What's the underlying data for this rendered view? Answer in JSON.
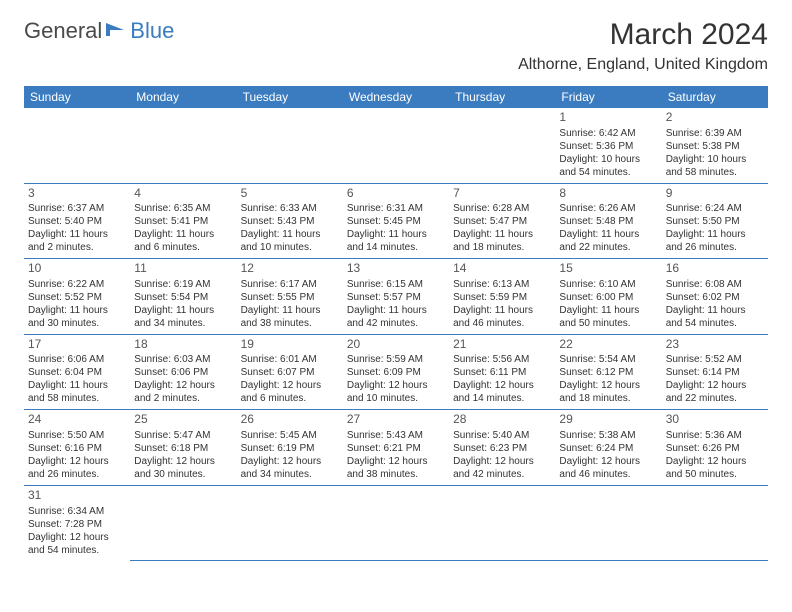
{
  "brand": {
    "part1": "General",
    "part2": "Blue"
  },
  "title": "March 2024",
  "location": "Althorne, England, United Kingdom",
  "colors": {
    "header_bg": "#3b7bbf",
    "header_text": "#ffffff",
    "row_divider": "#3b7bbf",
    "text": "#333333"
  },
  "weekdays": [
    "Sunday",
    "Monday",
    "Tuesday",
    "Wednesday",
    "Thursday",
    "Friday",
    "Saturday"
  ],
  "weeks": [
    [
      null,
      null,
      null,
      null,
      null,
      {
        "n": "1",
        "sr": "Sunrise: 6:42 AM",
        "ss": "Sunset: 5:36 PM",
        "dl": "Daylight: 10 hours and 54 minutes."
      },
      {
        "n": "2",
        "sr": "Sunrise: 6:39 AM",
        "ss": "Sunset: 5:38 PM",
        "dl": "Daylight: 10 hours and 58 minutes."
      }
    ],
    [
      {
        "n": "3",
        "sr": "Sunrise: 6:37 AM",
        "ss": "Sunset: 5:40 PM",
        "dl": "Daylight: 11 hours and 2 minutes."
      },
      {
        "n": "4",
        "sr": "Sunrise: 6:35 AM",
        "ss": "Sunset: 5:41 PM",
        "dl": "Daylight: 11 hours and 6 minutes."
      },
      {
        "n": "5",
        "sr": "Sunrise: 6:33 AM",
        "ss": "Sunset: 5:43 PM",
        "dl": "Daylight: 11 hours and 10 minutes."
      },
      {
        "n": "6",
        "sr": "Sunrise: 6:31 AM",
        "ss": "Sunset: 5:45 PM",
        "dl": "Daylight: 11 hours and 14 minutes."
      },
      {
        "n": "7",
        "sr": "Sunrise: 6:28 AM",
        "ss": "Sunset: 5:47 PM",
        "dl": "Daylight: 11 hours and 18 minutes."
      },
      {
        "n": "8",
        "sr": "Sunrise: 6:26 AM",
        "ss": "Sunset: 5:48 PM",
        "dl": "Daylight: 11 hours and 22 minutes."
      },
      {
        "n": "9",
        "sr": "Sunrise: 6:24 AM",
        "ss": "Sunset: 5:50 PM",
        "dl": "Daylight: 11 hours and 26 minutes."
      }
    ],
    [
      {
        "n": "10",
        "sr": "Sunrise: 6:22 AM",
        "ss": "Sunset: 5:52 PM",
        "dl": "Daylight: 11 hours and 30 minutes."
      },
      {
        "n": "11",
        "sr": "Sunrise: 6:19 AM",
        "ss": "Sunset: 5:54 PM",
        "dl": "Daylight: 11 hours and 34 minutes."
      },
      {
        "n": "12",
        "sr": "Sunrise: 6:17 AM",
        "ss": "Sunset: 5:55 PM",
        "dl": "Daylight: 11 hours and 38 minutes."
      },
      {
        "n": "13",
        "sr": "Sunrise: 6:15 AM",
        "ss": "Sunset: 5:57 PM",
        "dl": "Daylight: 11 hours and 42 minutes."
      },
      {
        "n": "14",
        "sr": "Sunrise: 6:13 AM",
        "ss": "Sunset: 5:59 PM",
        "dl": "Daylight: 11 hours and 46 minutes."
      },
      {
        "n": "15",
        "sr": "Sunrise: 6:10 AM",
        "ss": "Sunset: 6:00 PM",
        "dl": "Daylight: 11 hours and 50 minutes."
      },
      {
        "n": "16",
        "sr": "Sunrise: 6:08 AM",
        "ss": "Sunset: 6:02 PM",
        "dl": "Daylight: 11 hours and 54 minutes."
      }
    ],
    [
      {
        "n": "17",
        "sr": "Sunrise: 6:06 AM",
        "ss": "Sunset: 6:04 PM",
        "dl": "Daylight: 11 hours and 58 minutes."
      },
      {
        "n": "18",
        "sr": "Sunrise: 6:03 AM",
        "ss": "Sunset: 6:06 PM",
        "dl": "Daylight: 12 hours and 2 minutes."
      },
      {
        "n": "19",
        "sr": "Sunrise: 6:01 AM",
        "ss": "Sunset: 6:07 PM",
        "dl": "Daylight: 12 hours and 6 minutes."
      },
      {
        "n": "20",
        "sr": "Sunrise: 5:59 AM",
        "ss": "Sunset: 6:09 PM",
        "dl": "Daylight: 12 hours and 10 minutes."
      },
      {
        "n": "21",
        "sr": "Sunrise: 5:56 AM",
        "ss": "Sunset: 6:11 PM",
        "dl": "Daylight: 12 hours and 14 minutes."
      },
      {
        "n": "22",
        "sr": "Sunrise: 5:54 AM",
        "ss": "Sunset: 6:12 PM",
        "dl": "Daylight: 12 hours and 18 minutes."
      },
      {
        "n": "23",
        "sr": "Sunrise: 5:52 AM",
        "ss": "Sunset: 6:14 PM",
        "dl": "Daylight: 12 hours and 22 minutes."
      }
    ],
    [
      {
        "n": "24",
        "sr": "Sunrise: 5:50 AM",
        "ss": "Sunset: 6:16 PM",
        "dl": "Daylight: 12 hours and 26 minutes."
      },
      {
        "n": "25",
        "sr": "Sunrise: 5:47 AM",
        "ss": "Sunset: 6:18 PM",
        "dl": "Daylight: 12 hours and 30 minutes."
      },
      {
        "n": "26",
        "sr": "Sunrise: 5:45 AM",
        "ss": "Sunset: 6:19 PM",
        "dl": "Daylight: 12 hours and 34 minutes."
      },
      {
        "n": "27",
        "sr": "Sunrise: 5:43 AM",
        "ss": "Sunset: 6:21 PM",
        "dl": "Daylight: 12 hours and 38 minutes."
      },
      {
        "n": "28",
        "sr": "Sunrise: 5:40 AM",
        "ss": "Sunset: 6:23 PM",
        "dl": "Daylight: 12 hours and 42 minutes."
      },
      {
        "n": "29",
        "sr": "Sunrise: 5:38 AM",
        "ss": "Sunset: 6:24 PM",
        "dl": "Daylight: 12 hours and 46 minutes."
      },
      {
        "n": "30",
        "sr": "Sunrise: 5:36 AM",
        "ss": "Sunset: 6:26 PM",
        "dl": "Daylight: 12 hours and 50 minutes."
      }
    ],
    [
      {
        "n": "31",
        "sr": "Sunrise: 6:34 AM",
        "ss": "Sunset: 7:28 PM",
        "dl": "Daylight: 12 hours and 54 minutes."
      },
      null,
      null,
      null,
      null,
      null,
      null
    ]
  ]
}
